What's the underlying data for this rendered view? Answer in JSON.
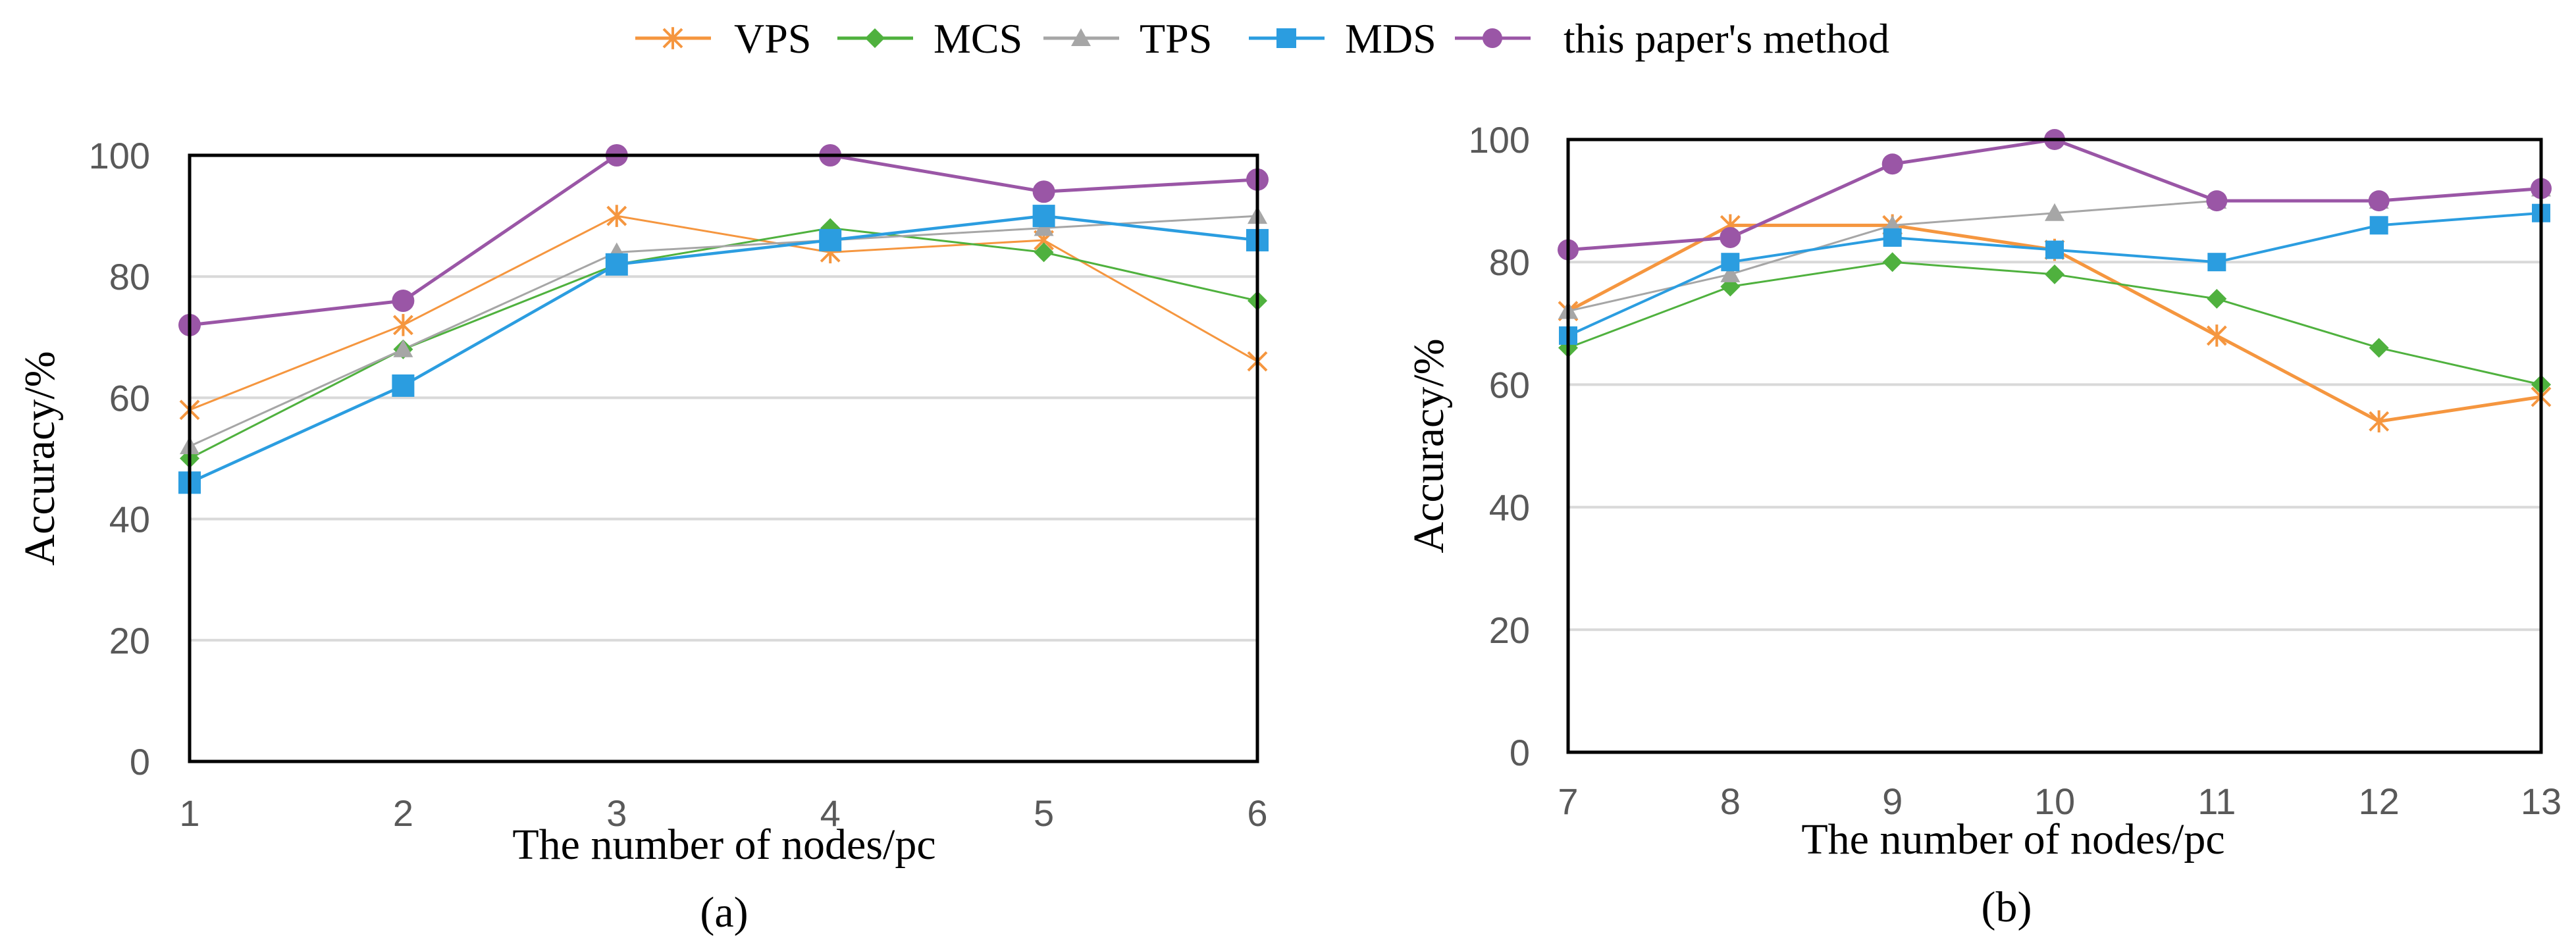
{
  "legend": {
    "items": [
      {
        "name": "VPS",
        "color": "#f5963f",
        "marker": "star"
      },
      {
        "name": "MCS",
        "color": "#4fb13e",
        "marker": "diamond"
      },
      {
        "name": "TPS",
        "color": "#a6a6a6",
        "marker": "triangle"
      },
      {
        "name": "MDS",
        "color": "#2b9de0",
        "marker": "square"
      },
      {
        "name": "this paper's method",
        "color": "#9a56a6",
        "marker": "circle"
      }
    ]
  },
  "chart_data": [
    {
      "type": "line",
      "panel_label": "(a)",
      "xlabel": "The number of nodes/pc",
      "ylabel": "Accuracy/%",
      "x": [
        1,
        2,
        3,
        4,
        5,
        6
      ],
      "ylim": [
        0,
        100
      ],
      "yticks": [
        0,
        20,
        40,
        60,
        80,
        100
      ],
      "grid": "horizontal",
      "series": [
        {
          "name": "VPS",
          "values": [
            58,
            72,
            90,
            84,
            86,
            66
          ]
        },
        {
          "name": "MCS",
          "values": [
            50,
            68,
            82,
            88,
            84,
            76
          ]
        },
        {
          "name": "TPS",
          "values": [
            52,
            68,
            84,
            86,
            88,
            90
          ]
        },
        {
          "name": "MDS",
          "values": [
            46,
            62,
            82,
            86,
            90,
            86
          ]
        },
        {
          "name": "this paper's method",
          "values": [
            72,
            76,
            100,
            100,
            94,
            96
          ]
        }
      ]
    },
    {
      "type": "line",
      "panel_label": "(b)",
      "xlabel": "The number of nodes/pc",
      "ylabel": "Accuracy/%",
      "x": [
        7,
        8,
        9,
        10,
        11,
        12,
        13
      ],
      "ylim": [
        0,
        100
      ],
      "yticks": [
        0,
        20,
        40,
        60,
        80,
        100
      ],
      "grid": "horizontal",
      "series": [
        {
          "name": "VPS",
          "values": [
            72,
            86,
            86,
            82,
            68,
            54,
            58
          ]
        },
        {
          "name": "MCS",
          "values": [
            66,
            76,
            80,
            78,
            74,
            66,
            60
          ]
        },
        {
          "name": "TPS",
          "values": [
            72,
            78,
            86,
            88,
            90,
            90,
            92
          ]
        },
        {
          "name": "MDS",
          "values": [
            68,
            80,
            84,
            82,
            80,
            86,
            88
          ]
        },
        {
          "name": "this paper's method",
          "values": [
            82,
            84,
            96,
            100,
            90,
            90,
            92
          ]
        }
      ]
    }
  ]
}
